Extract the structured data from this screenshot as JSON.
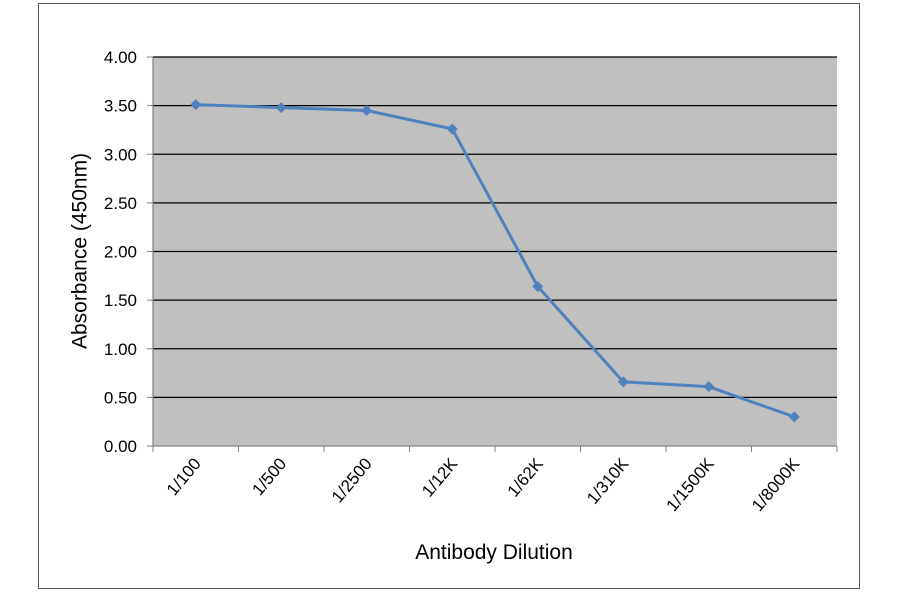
{
  "chart_data": {
    "type": "line",
    "title": "",
    "xlabel": "Antibody Dilution",
    "ylabel": "Absorbance (450nm)",
    "categories": [
      "1/100",
      "1/500",
      "1/2500",
      "1/12K",
      "1/62K",
      "1/310K",
      "1/1500K",
      "1/8000K"
    ],
    "series": [
      {
        "values": [
          3.51,
          3.48,
          3.45,
          3.26,
          1.64,
          0.66,
          0.61,
          0.3
        ]
      }
    ],
    "ylim": [
      0,
      4
    ],
    "yticks": [
      "0.00",
      "0.50",
      "1.00",
      "1.50",
      "2.00",
      "2.50",
      "3.00",
      "3.50",
      "4.00"
    ],
    "grid": true,
    "legend": "none",
    "colors": {
      "plot_background": "#c0c0c0",
      "series": "#4f81bd",
      "gridline": "#000000"
    }
  }
}
